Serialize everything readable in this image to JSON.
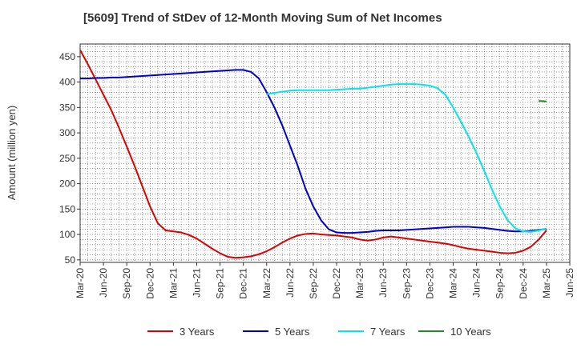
{
  "title": "[5609]  Trend of StDev of 12-Month Moving Sum of Net Incomes",
  "chart_data": {
    "type": "line",
    "title": "[5609]  Trend of StDev of 12-Month Moving Sum of Net Incomes",
    "xlabel": "",
    "ylabel": "Amount (million yen)",
    "ylim": [
      45,
      475
    ],
    "yticks": [
      50,
      100,
      150,
      200,
      250,
      300,
      350,
      400,
      450
    ],
    "grid": true,
    "legend_position": "bottom",
    "x_tick_labels": [
      "Mar-20",
      "Jun-20",
      "Sep-20",
      "Dec-20",
      "Mar-21",
      "Jun-21",
      "Sep-21",
      "Dec-21",
      "Mar-22",
      "Jun-22",
      "Sep-22",
      "Dec-22",
      "Mar-23",
      "Jun-23",
      "Sep-23",
      "Dec-23",
      "Mar-24",
      "Jun-24",
      "Sep-24",
      "Dec-24",
      "Mar-25",
      "Jun-25"
    ],
    "series": [
      {
        "name": "3 Years",
        "color": "#dd0000",
        "x": [
          "Mar-20",
          "Apr-20",
          "May-20",
          "Jun-20",
          "Jul-20",
          "Aug-20",
          "Sep-20",
          "Oct-20",
          "Nov-20",
          "Dec-20",
          "Jan-21",
          "Feb-21",
          "Mar-21",
          "Apr-21",
          "May-21",
          "Jun-21",
          "Jul-21",
          "Aug-21",
          "Sep-21",
          "Oct-21",
          "Nov-21",
          "Dec-21",
          "Jan-22",
          "Feb-22",
          "Mar-22",
          "Apr-22",
          "May-22",
          "Jun-22",
          "Jul-22",
          "Aug-22",
          "Sep-22",
          "Oct-22",
          "Nov-22",
          "Dec-22",
          "Jan-23",
          "Feb-23",
          "Mar-23",
          "Apr-23",
          "May-23",
          "Jun-23",
          "Jul-23",
          "Aug-23",
          "Sep-23",
          "Oct-23",
          "Nov-23",
          "Dec-23",
          "Jan-24",
          "Feb-24",
          "Mar-24",
          "Apr-24",
          "May-24",
          "Jun-24",
          "Jul-24",
          "Aug-24",
          "Sep-24",
          "Oct-24",
          "Nov-24",
          "Dec-24",
          "Jan-25",
          "Feb-25",
          "Mar-25"
        ],
        "values": [
          463,
          435,
          405,
          375,
          345,
          310,
          273,
          235,
          195,
          155,
          122,
          108,
          106,
          104,
          99,
          92,
          82,
          72,
          63,
          56,
          54,
          55,
          57,
          61,
          67,
          75,
          84,
          92,
          98,
          101,
          102,
          100,
          99,
          98,
          96,
          94,
          90,
          88,
          90,
          94,
          96,
          94,
          92,
          90,
          88,
          86,
          84,
          82,
          79,
          75,
          72,
          70,
          68,
          66,
          64,
          63,
          64,
          68,
          76,
          90,
          108
        ]
      },
      {
        "name": "5 Years",
        "color": "#0000cc",
        "x": [
          "Mar-20",
          "Apr-20",
          "May-20",
          "Jun-20",
          "Jul-20",
          "Aug-20",
          "Sep-20",
          "Oct-20",
          "Nov-20",
          "Dec-20",
          "Jan-21",
          "Feb-21",
          "Mar-21",
          "Apr-21",
          "May-21",
          "Jun-21",
          "Jul-21",
          "Aug-21",
          "Sep-21",
          "Oct-21",
          "Nov-21",
          "Dec-21",
          "Jan-22",
          "Feb-22",
          "Mar-22",
          "Apr-22",
          "May-22",
          "Jun-22",
          "Jul-22",
          "Aug-22",
          "Sep-22",
          "Oct-22",
          "Nov-22",
          "Dec-22",
          "Jan-23",
          "Feb-23",
          "Mar-23",
          "Apr-23",
          "May-23",
          "Jun-23",
          "Jul-23",
          "Aug-23",
          "Sep-23",
          "Oct-23",
          "Nov-23",
          "Dec-23",
          "Jan-24",
          "Feb-24",
          "Mar-24",
          "Apr-24",
          "May-24",
          "Jun-24",
          "Jul-24",
          "Aug-24",
          "Sep-24",
          "Oct-24",
          "Nov-24",
          "Dec-24",
          "Jan-25",
          "Feb-25",
          "Mar-25"
        ],
        "values": [
          407,
          407,
          408,
          408,
          409,
          409,
          410,
          411,
          412,
          413,
          414,
          415,
          416,
          417,
          418,
          419,
          420,
          421,
          422,
          423,
          424,
          424,
          420,
          407,
          380,
          350,
          315,
          275,
          235,
          190,
          155,
          128,
          110,
          104,
          103,
          103,
          104,
          105,
          107,
          108,
          108,
          108,
          109,
          110,
          111,
          112,
          113,
          114,
          115,
          115,
          115,
          114,
          113,
          111,
          109,
          107,
          106,
          106,
          107,
          109,
          111
        ]
      },
      {
        "name": "7 Years",
        "color": "#00e5ee",
        "x": [
          "Mar-22",
          "Apr-22",
          "May-22",
          "Jun-22",
          "Jul-22",
          "Aug-22",
          "Sep-22",
          "Oct-22",
          "Nov-22",
          "Dec-22",
          "Jan-23",
          "Feb-23",
          "Mar-23",
          "Apr-23",
          "May-23",
          "Jun-23",
          "Jul-23",
          "Aug-23",
          "Sep-23",
          "Oct-23",
          "Nov-23",
          "Dec-23",
          "Jan-24",
          "Feb-24",
          "Mar-24",
          "Apr-24",
          "May-24",
          "Jun-24",
          "Jul-24",
          "Aug-24",
          "Sep-24",
          "Oct-24",
          "Nov-24",
          "Dec-24",
          "Jan-25",
          "Feb-25",
          "Mar-25"
        ],
        "values": [
          376,
          379,
          381,
          383,
          384,
          384,
          384,
          384,
          384,
          385,
          386,
          387,
          387,
          389,
          391,
          393,
          395,
          396,
          396,
          396,
          395,
          393,
          388,
          375,
          350,
          322,
          292,
          260,
          225,
          188,
          155,
          128,
          112,
          106,
          105,
          108,
          112
        ]
      },
      {
        "name": "10 Years",
        "color": "#228b22",
        "x": [
          "Feb-25",
          "Mar-25"
        ],
        "values": [
          363,
          362
        ]
      }
    ]
  }
}
